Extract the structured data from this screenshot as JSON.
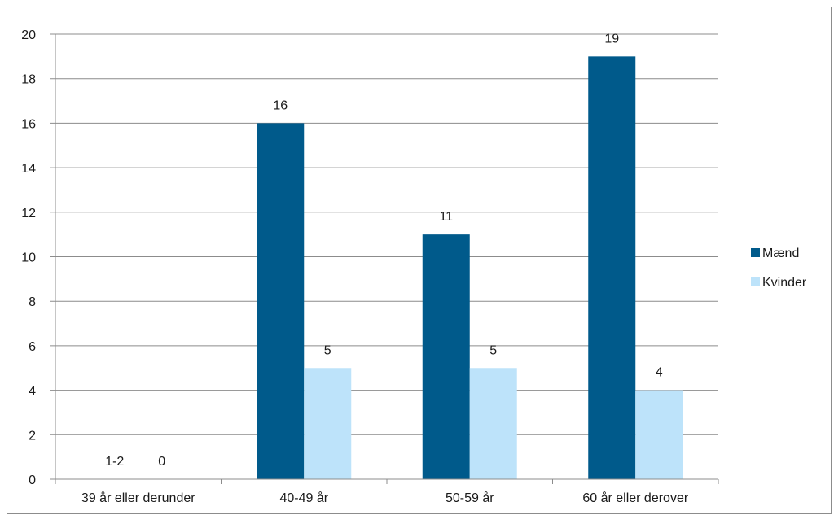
{
  "chart_data": {
    "type": "bar",
    "categories": [
      "39 år eller derunder",
      "40-49 år",
      "50-59 år",
      "60 år eller derover"
    ],
    "series": [
      {
        "name": "Mænd",
        "color": "#005a8b",
        "values": [
          null,
          16,
          11,
          19
        ],
        "labels": [
          "1-2",
          "16",
          "11",
          "19"
        ]
      },
      {
        "name": "Kvinder",
        "color": "#bde3fa",
        "values": [
          0,
          5,
          5,
          4
        ],
        "labels": [
          "0",
          "5",
          "5",
          "4"
        ]
      }
    ],
    "ylim": [
      0,
      20
    ],
    "yticks": [
      0,
      2,
      4,
      6,
      8,
      10,
      12,
      14,
      16,
      18,
      20
    ],
    "grid": true,
    "legend_position": "right"
  }
}
